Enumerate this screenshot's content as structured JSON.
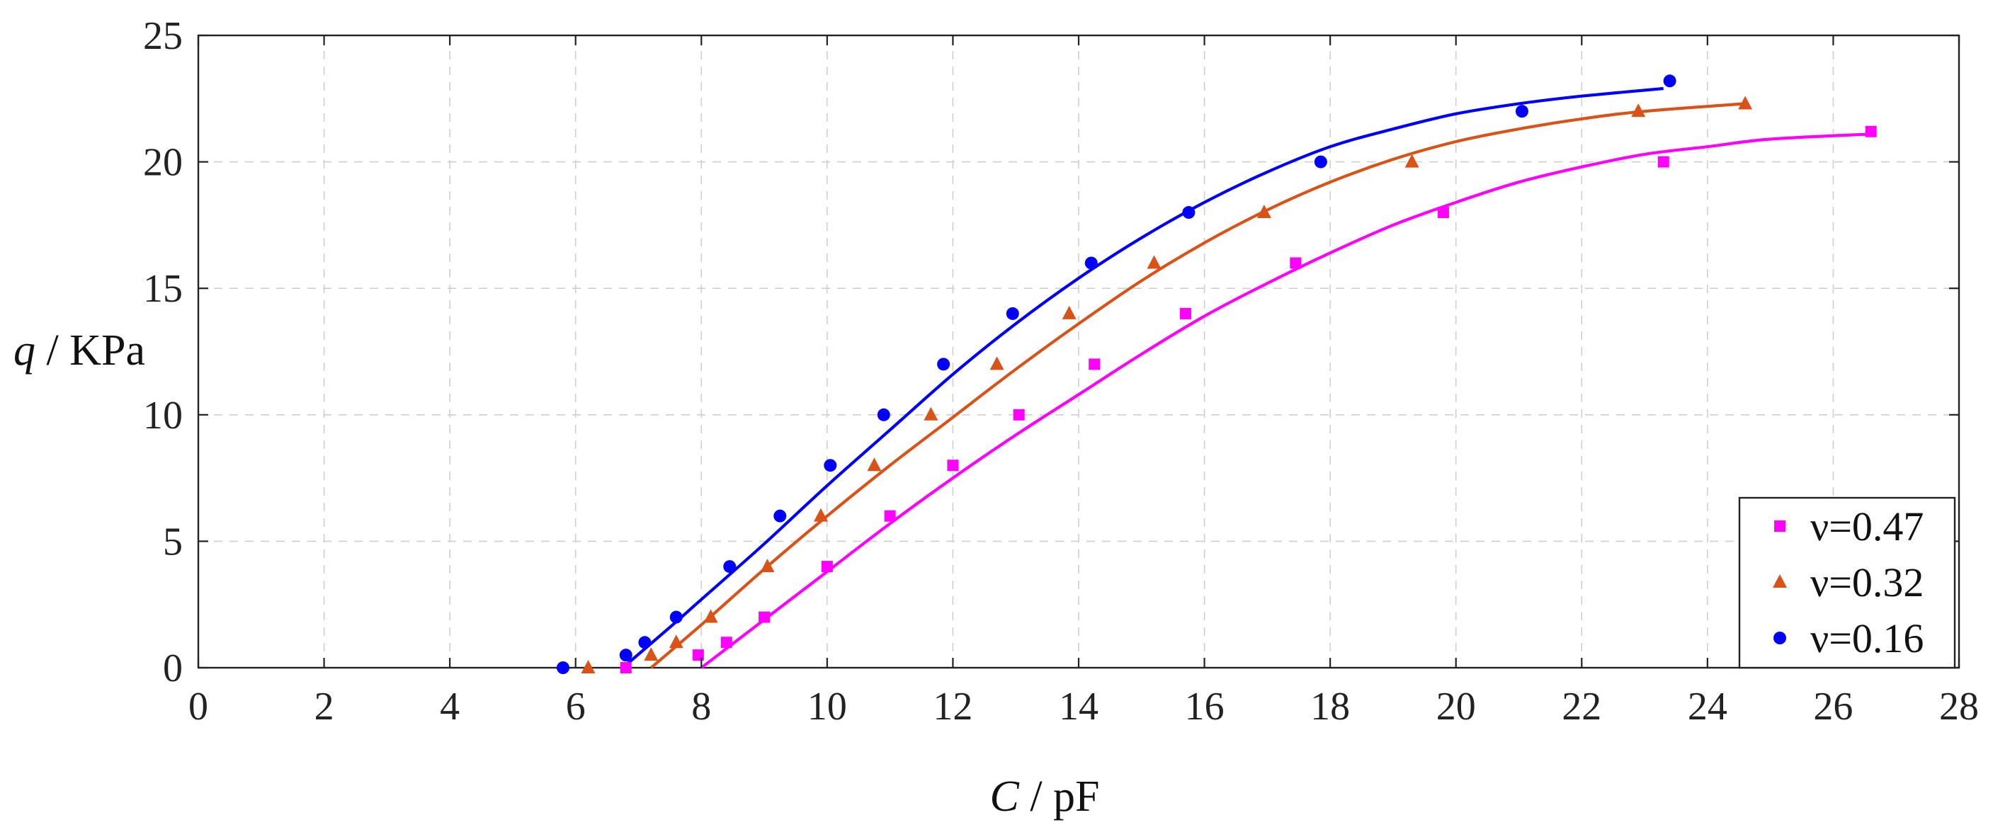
{
  "chart_data": {
    "type": "scatter",
    "xlabel_var": "C",
    "xlabel_sep": " / ",
    "xlabel_unit": "pF",
    "ylabel_var": "q",
    "ylabel_sep": " / ",
    "ylabel_unit": "KPa",
    "xlim": [
      0,
      28
    ],
    "ylim": [
      0,
      25
    ],
    "xticks": [
      0,
      2,
      4,
      6,
      8,
      10,
      12,
      14,
      16,
      18,
      20,
      22,
      24,
      26,
      28
    ],
    "yticks": [
      0,
      5,
      10,
      15,
      20,
      25
    ],
    "grid": true,
    "legend_position": "bottom-right",
    "series": [
      {
        "name": "ν=0.47",
        "marker": "square",
        "color": "#ff00ff",
        "points": [
          [
            6.8,
            0
          ],
          [
            7.95,
            0.5
          ],
          [
            8.4,
            1
          ],
          [
            9.0,
            2
          ],
          [
            10.0,
            4
          ],
          [
            11.0,
            6
          ],
          [
            12.0,
            8
          ],
          [
            13.05,
            10
          ],
          [
            14.25,
            12
          ],
          [
            15.7,
            14
          ],
          [
            17.45,
            16
          ],
          [
            19.8,
            18
          ],
          [
            23.3,
            20
          ],
          [
            26.6,
            21.2
          ]
        ],
        "fit_x": [
          8.0,
          26.6
        ],
        "fit": [
          [
            8.0,
            0
          ],
          [
            9.0,
            1.9
          ],
          [
            10.0,
            3.8
          ],
          [
            11.0,
            5.7
          ],
          [
            12.0,
            7.5
          ],
          [
            13.0,
            9.2
          ],
          [
            14.0,
            10.8
          ],
          [
            15.0,
            12.4
          ],
          [
            16.0,
            13.9
          ],
          [
            17.0,
            15.2
          ],
          [
            18.0,
            16.4
          ],
          [
            19.0,
            17.5
          ],
          [
            20.0,
            18.4
          ],
          [
            21.0,
            19.2
          ],
          [
            22.0,
            19.8
          ],
          [
            23.0,
            20.3
          ],
          [
            24.0,
            20.6
          ],
          [
            25.0,
            20.9
          ],
          [
            26.6,
            21.1
          ]
        ]
      },
      {
        "name": "ν=0.32",
        "marker": "triangle",
        "color": "#d95319",
        "points": [
          [
            6.2,
            0
          ],
          [
            7.2,
            0.5
          ],
          [
            7.6,
            1
          ],
          [
            8.15,
            2
          ],
          [
            9.05,
            4
          ],
          [
            9.9,
            6
          ],
          [
            10.75,
            8
          ],
          [
            11.65,
            10
          ],
          [
            12.7,
            12
          ],
          [
            13.85,
            14
          ],
          [
            15.2,
            16
          ],
          [
            16.95,
            18
          ],
          [
            19.3,
            20
          ],
          [
            22.9,
            22
          ],
          [
            24.6,
            22.3
          ]
        ],
        "fit_x": [
          7.2,
          24.6
        ],
        "fit": [
          [
            7.2,
            0
          ],
          [
            8.0,
            1.7
          ],
          [
            9.0,
            3.9
          ],
          [
            10.0,
            6.0
          ],
          [
            11.0,
            8.0
          ],
          [
            12.0,
            9.9
          ],
          [
            13.0,
            11.8
          ],
          [
            14.0,
            13.6
          ],
          [
            15.0,
            15.3
          ],
          [
            16.0,
            16.8
          ],
          [
            17.0,
            18.1
          ],
          [
            18.0,
            19.2
          ],
          [
            19.0,
            20.1
          ],
          [
            20.0,
            20.8
          ],
          [
            21.0,
            21.3
          ],
          [
            22.0,
            21.7
          ],
          [
            23.0,
            22.0
          ],
          [
            24.6,
            22.3
          ]
        ]
      },
      {
        "name": "ν=0.16",
        "marker": "circle",
        "color": "#0000ff",
        "points": [
          [
            5.8,
            0
          ],
          [
            6.8,
            0.5
          ],
          [
            7.1,
            1
          ],
          [
            7.6,
            2
          ],
          [
            8.45,
            4
          ],
          [
            9.25,
            6
          ],
          [
            10.05,
            8
          ],
          [
            10.9,
            10
          ],
          [
            11.85,
            12
          ],
          [
            12.95,
            14
          ],
          [
            14.2,
            16
          ],
          [
            15.75,
            18
          ],
          [
            17.85,
            20
          ],
          [
            21.05,
            22
          ],
          [
            23.4,
            23.2
          ]
        ],
        "fit_x": [
          6.75,
          23.3
        ],
        "fit": [
          [
            6.75,
            0
          ],
          [
            7.5,
            1.6
          ],
          [
            8.0,
            2.7
          ],
          [
            9.0,
            4.9
          ],
          [
            10.0,
            7.2
          ],
          [
            11.0,
            9.4
          ],
          [
            12.0,
            11.6
          ],
          [
            13.0,
            13.6
          ],
          [
            14.0,
            15.4
          ],
          [
            15.0,
            17.0
          ],
          [
            16.0,
            18.4
          ],
          [
            17.0,
            19.6
          ],
          [
            18.0,
            20.6
          ],
          [
            19.0,
            21.3
          ],
          [
            20.0,
            21.9
          ],
          [
            21.0,
            22.3
          ],
          [
            22.0,
            22.6
          ],
          [
            23.3,
            22.9
          ]
        ]
      }
    ]
  }
}
